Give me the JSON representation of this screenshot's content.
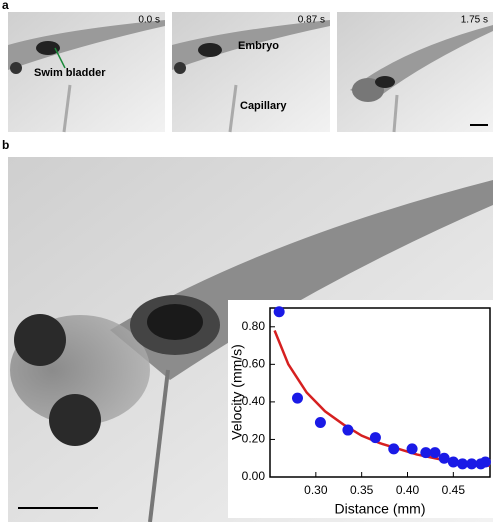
{
  "panel_a": {
    "label": "a",
    "frames": [
      {
        "time": "0.0 s"
      },
      {
        "time": "0.87 s"
      },
      {
        "time": "1.75 s"
      }
    ],
    "annotations": {
      "swim_bladder": "Swim bladder",
      "embryo": "Embryo",
      "capillary": "Capillary"
    }
  },
  "panel_b": {
    "label": "b"
  },
  "chart_data": {
    "type": "scatter",
    "x_label": "Distance (mm)",
    "y_label": "Velocity (mm/s)",
    "xlim": [
      0.25,
      0.49
    ],
    "ylim": [
      0,
      0.9
    ],
    "xticks": [
      {
        "value": 0.3,
        "label": "0.30"
      },
      {
        "value": 0.35,
        "label": "0.35"
      },
      {
        "value": 0.4,
        "label": "0.40"
      },
      {
        "value": 0.45,
        "label": "0.45"
      }
    ],
    "yticks": [
      {
        "value": 0,
        "label": "0.00"
      },
      {
        "value": 0.2,
        "label": "0.20"
      },
      {
        "value": 0.4,
        "label": "0.40"
      },
      {
        "value": 0.6,
        "label": "0.60"
      },
      {
        "value": 0.8,
        "label": "0.80"
      }
    ],
    "series": [
      {
        "color": "#1a1ae6",
        "x": [
          0.26,
          0.28,
          0.305,
          0.335,
          0.365,
          0.385,
          0.405,
          0.42,
          0.43,
          0.44,
          0.45,
          0.46,
          0.47,
          0.48,
          0.485
        ],
        "values": [
          0.88,
          0.42,
          0.29,
          0.25,
          0.21,
          0.15,
          0.15,
          0.13,
          0.13,
          0.1,
          0.08,
          0.07,
          0.07,
          0.07,
          0.08
        ]
      },
      {
        "type": "line",
        "color": "#d62020",
        "x": [
          0.255,
          0.27,
          0.29,
          0.31,
          0.33,
          0.35,
          0.37,
          0.39,
          0.41,
          0.43,
          0.45,
          0.47,
          0.49
        ],
        "values": [
          0.78,
          0.6,
          0.45,
          0.35,
          0.28,
          0.22,
          0.18,
          0.15,
          0.12,
          0.1,
          0.08,
          0.07,
          0.06
        ]
      }
    ]
  }
}
